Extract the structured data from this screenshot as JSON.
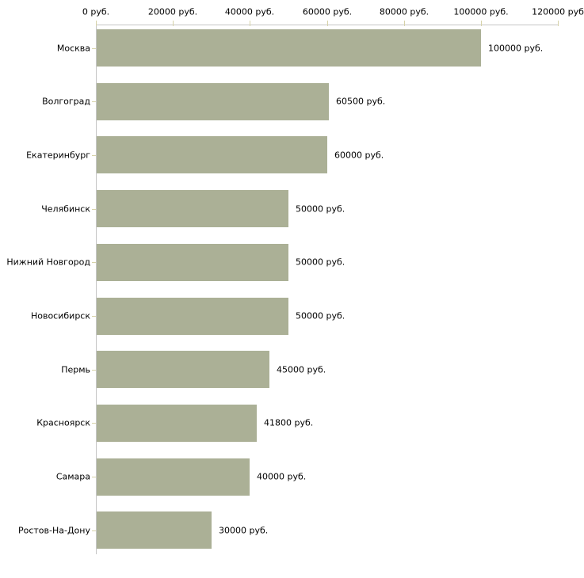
{
  "chart_data": {
    "type": "bar",
    "orientation": "horizontal",
    "title": "",
    "categories": [
      "Москва",
      "Волгоград",
      "Екатеринбург",
      "Челябинск",
      "Нижний Новгород",
      "Новосибирск",
      "Пермь",
      "Красноярск",
      "Самара",
      "Ростов-На-Дону"
    ],
    "values": [
      100000,
      60500,
      60000,
      50000,
      50000,
      50000,
      45000,
      41800,
      40000,
      30000
    ],
    "value_labels": [
      "100000 руб.",
      "60500 руб.",
      "60000 руб.",
      "50000 руб.",
      "50000 руб.",
      "50000 руб.",
      "45000 руб.",
      "41800 руб.",
      "40000 руб.",
      "30000 руб."
    ],
    "x_axis": {
      "position": "top",
      "min": 0,
      "max": 120000,
      "ticks": [
        0,
        20000,
        40000,
        60000,
        80000,
        100000,
        120000
      ],
      "tick_labels": [
        "0 руб.",
        "20000 руб.",
        "40000 руб.",
        "60000 руб.",
        "80000 руб.",
        "100000 руб.",
        "120000 руб"
      ]
    },
    "ylabel": "",
    "xlabel": "",
    "legend": "none",
    "grid": "off",
    "colors": {
      "bar": "#abb096",
      "axis_line": "#c6c6c6",
      "tick_mark": "#d6d2a8",
      "text": "#000000",
      "background": "#ffffff"
    }
  }
}
